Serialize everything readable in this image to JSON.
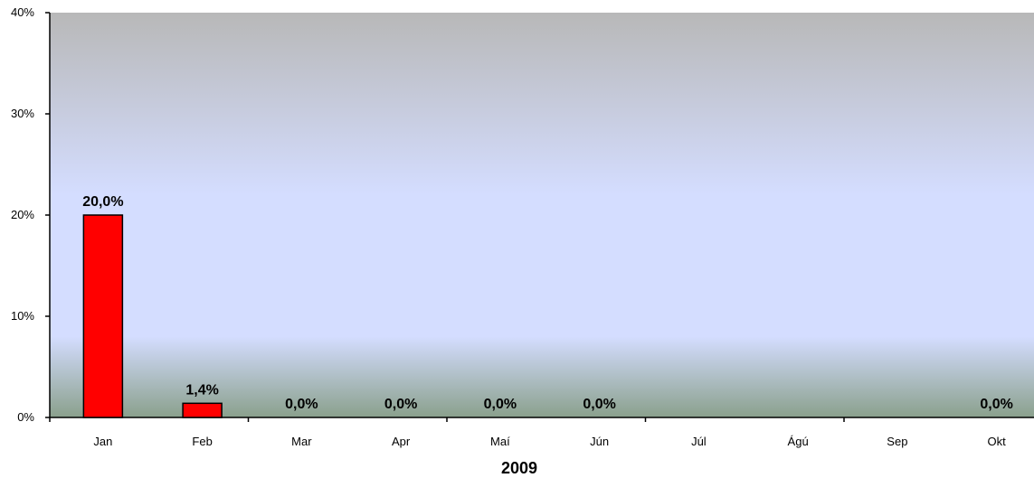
{
  "chart_data": {
    "type": "bar",
    "title": "",
    "xlabel": "2009",
    "ylabel": "",
    "categories": [
      "Jan",
      "Feb",
      "Mar",
      "Apr",
      "Maí",
      "Jún",
      "Júl",
      "Ágú",
      "Sep",
      "Okt"
    ],
    "values": [
      20.0,
      1.4,
      0.0,
      0.0,
      0.0,
      0.0,
      null,
      null,
      null,
      0.0
    ],
    "data_labels": [
      "20,0%",
      "1,4%",
      "0,0%",
      "0,0%",
      "0,0%",
      "0,0%",
      "",
      "",
      "",
      "0,0%"
    ],
    "ylim": [
      0,
      40
    ],
    "yticks": [
      0,
      10,
      20,
      30,
      40
    ],
    "ytick_labels": [
      "0%",
      "10%",
      "20%",
      "30%",
      "40%"
    ],
    "grid": false,
    "legend": "none",
    "colors": {
      "bar_fill": "#ff0000",
      "bar_stroke": "#000000",
      "plot_bg_top": "#b8b8b8",
      "plot_bg_mid": "#d4ddff",
      "plot_bg_bottom": "#8aa08c"
    }
  }
}
